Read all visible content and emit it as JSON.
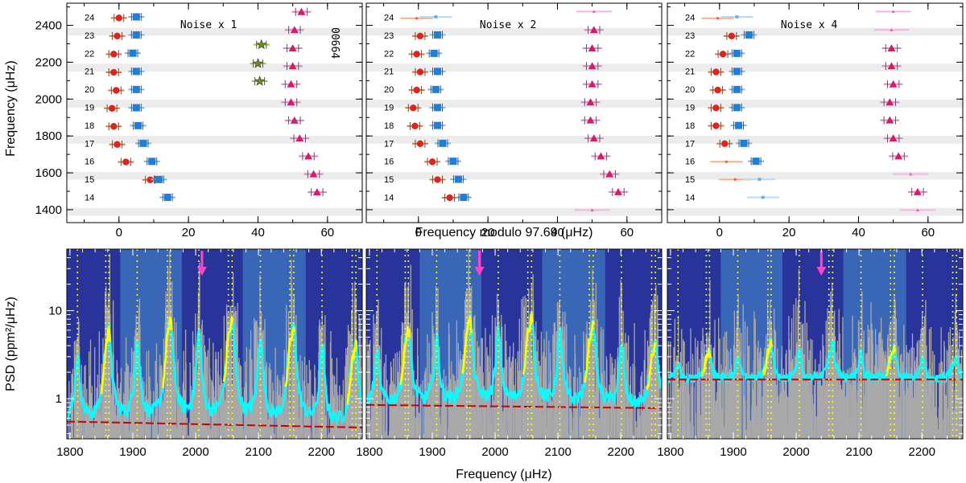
{
  "figure": {
    "top_xlabel": "Frequency modulo 97.69 (μHz)",
    "top_ylabel": "Frequency (μHz)",
    "bottom_xlabel": "Frequency (μHz)",
    "bottom_ylabel": "PSD (ppm²/μHz)",
    "star_id": "00664"
  },
  "chart_data": [
    {
      "type": "scatter",
      "panel": "echelle-noise-x1",
      "annotation": "Noise x 1",
      "xlim": [
        -15,
        70
      ],
      "ylim": [
        1330,
        2520
      ],
      "xticks": [
        0,
        20,
        40,
        60
      ],
      "yticks": [
        1400,
        1600,
        1800,
        2000,
        2200,
        2400
      ],
      "orders": [
        14,
        15,
        16,
        17,
        18,
        19,
        20,
        21,
        22,
        23,
        24
      ],
      "series": [
        {
          "name": "l=0",
          "marker": "circle",
          "color": "#e2231a",
          "points": [
            [
              9,
              1562
            ],
            [
              2,
              1659
            ],
            [
              -0.5,
              1754
            ],
            [
              -1.5,
              1852
            ],
            [
              -2,
              1950
            ],
            [
              -0.8,
              2047
            ],
            [
              -1.5,
              2145
            ],
            [
              -1.5,
              2244
            ],
            [
              -0.5,
              2342
            ],
            [
              0,
              2440
            ]
          ]
        },
        {
          "name": "l=1",
          "marker": "square",
          "color": "#1e7fd8",
          "points": [
            [
              14,
              1467
            ],
            [
              11.5,
              1564
            ],
            [
              9.5,
              1662
            ],
            [
              7,
              1760
            ],
            [
              5.5,
              1856
            ],
            [
              5,
              1953
            ],
            [
              5,
              2052
            ],
            [
              5,
              2150
            ],
            [
              4,
              2249
            ],
            [
              5,
              2348
            ],
            [
              5,
              2446
            ]
          ]
        },
        {
          "name": "l=2",
          "marker": "triangle",
          "color": "#d41c6f",
          "points": [
            [
              57,
              1495
            ],
            [
              56,
              1593
            ],
            [
              54.5,
              1690
            ],
            [
              52,
              1787
            ],
            [
              50.5,
              1884
            ],
            [
              49.5,
              1983
            ],
            [
              49.5,
              2081
            ],
            [
              50,
              2179
            ],
            [
              50,
              2276
            ],
            [
              50.5,
              2375
            ],
            [
              52.5,
              2473
            ]
          ]
        },
        {
          "name": "l=3",
          "marker": "star",
          "color": "#6b8e23",
          "points": [
            [
              40.5,
              2097
            ],
            [
              40,
              2193
            ],
            [
              41,
              2295
            ]
          ]
        }
      ]
    },
    {
      "type": "scatter",
      "panel": "echelle-noise-x2",
      "annotation": "Noise x 2",
      "xlim": [
        -15,
        70
      ],
      "ylim": [
        1330,
        2520
      ],
      "xticks": [
        0,
        20,
        40,
        60
      ],
      "yticks": [
        1400,
        1600,
        1800,
        2000,
        2200,
        2400
      ],
      "orders": [
        14,
        15,
        16,
        17,
        18,
        19,
        20,
        21,
        22,
        23,
        24
      ],
      "series": [
        {
          "name": "l=0",
          "marker": "circle",
          "color": "#e2231a",
          "points": [
            [
              9,
              1465
            ],
            [
              5.5,
              1563
            ],
            [
              4,
              1660
            ],
            [
              0.5,
              1758
            ],
            [
              -1,
              1854
            ],
            [
              -1.5,
              1952
            ],
            [
              -0.5,
              2049
            ],
            [
              0.5,
              2147
            ],
            [
              -0.5,
              2244
            ],
            [
              0.5,
              2342
            ],
            [
              -0.5,
              2438,
              "faint"
            ]
          ]
        },
        {
          "name": "l=1",
          "marker": "square",
          "color": "#1e7fd8",
          "points": [
            [
              13,
              1467
            ],
            [
              11.5,
              1565
            ],
            [
              10,
              1663
            ],
            [
              7,
              1760
            ],
            [
              5.5,
              1857
            ],
            [
              5.5,
              1954
            ],
            [
              5,
              2052
            ],
            [
              5.5,
              2150
            ],
            [
              4.5,
              2248
            ],
            [
              5.5,
              2348
            ],
            [
              5,
              2446,
              "faint"
            ]
          ]
        },
        {
          "name": "l=2",
          "marker": "triangle",
          "color": "#d41c6f",
          "points": [
            [
              50,
              1398,
              "faint"
            ],
            [
              57.5,
              1496
            ],
            [
              55,
              1593
            ],
            [
              52.5,
              1690
            ],
            [
              50.5,
              1787
            ],
            [
              49.5,
              1885
            ],
            [
              49.5,
              1983
            ],
            [
              50,
              2081
            ],
            [
              50,
              2179
            ],
            [
              50,
              2276
            ],
            [
              50.5,
              2375
            ],
            [
              50.5,
              2475,
              "faint"
            ]
          ]
        }
      ]
    },
    {
      "type": "scatter",
      "panel": "echelle-noise-x4",
      "annotation": "Noise x 4",
      "xlim": [
        -15,
        70
      ],
      "ylim": [
        1330,
        2520
      ],
      "xticks": [
        0,
        20,
        40,
        60
      ],
      "yticks": [
        1400,
        1600,
        1800,
        2000,
        2200,
        2400
      ],
      "orders": [
        14,
        15,
        16,
        17,
        18,
        19,
        20,
        21,
        22,
        23,
        24
      ],
      "series": [
        {
          "name": "l=0",
          "marker": "circle",
          "color": "#e2231a",
          "points": [
            [
              4.5,
              1564,
              "faint"
            ],
            [
              2,
              1660,
              "faint"
            ],
            [
              1.5,
              1758
            ],
            [
              -1,
              1855
            ],
            [
              -1,
              1952
            ],
            [
              -0.5,
              2049
            ],
            [
              -1,
              2147
            ],
            [
              1,
              2244
            ],
            [
              3.5,
              2342
            ],
            [
              -0.5,
              2438,
              "faint"
            ]
          ]
        },
        {
          "name": "l=1",
          "marker": "square",
          "color": "#1e7fd8",
          "points": [
            [
              12.5,
              1467,
              "faint"
            ],
            [
              11.5,
              1565,
              "faint"
            ],
            [
              10.5,
              1663
            ],
            [
              7,
              1760
            ],
            [
              5.5,
              1857
            ],
            [
              5,
              1954
            ],
            [
              5,
              2052
            ],
            [
              5,
              2150
            ],
            [
              5,
              2248
            ],
            [
              8.5,
              2348
            ],
            [
              5,
              2446,
              "faint"
            ]
          ]
        },
        {
          "name": "l=2",
          "marker": "triangle",
          "color": "#d41c6f",
          "points": [
            [
              57,
              1398,
              "faint"
            ],
            [
              57,
              1496
            ],
            [
              55,
              1593,
              "faint"
            ],
            [
              51.5,
              1690
            ],
            [
              50,
              1787
            ],
            [
              49,
              1885
            ],
            [
              49,
              1983
            ],
            [
              50,
              2081
            ],
            [
              49.5,
              2179
            ],
            [
              49.5,
              2276
            ],
            [
              49.5,
              2375,
              "faint"
            ],
            [
              50,
              2475,
              "faint"
            ]
          ]
        }
      ]
    },
    {
      "type": "line",
      "panel": "psd-noise-x1",
      "xlim": [
        1795,
        2265
      ],
      "ylim": [
        0.35,
        50
      ],
      "yscale": "log",
      "xticks": [
        1800,
        1900,
        2000,
        2100,
        2200
      ],
      "yticks": [
        1,
        10
      ],
      "nu_max": 2010,
      "mode_frequencies": [
        1812,
        1857,
        1862,
        1907,
        1955,
        1960,
        2005,
        2052,
        2058,
        2103,
        2150,
        2156,
        2201,
        2249,
        2255
      ],
      "background_level": [
        0.55,
        0.47
      ],
      "noise_level": 1,
      "shaded_bands": [
        [
          1880,
          1978
        ],
        [
          2075,
          2175
        ]
      ],
      "series_smoothed_color": "#00ffff",
      "series_fit_color": "#ffff00",
      "raw_psd_color": "#a9a9a9",
      "background_color": "#cc0000"
    },
    {
      "type": "line",
      "panel": "psd-noise-x2",
      "xlim": [
        1795,
        2265
      ],
      "ylim": [
        0.35,
        50
      ],
      "yscale": "log",
      "xticks": [
        1800,
        1900,
        2000,
        2100,
        2200
      ],
      "yticks": [
        1,
        10
      ],
      "nu_max": 1975,
      "mode_frequencies": [
        1812,
        1857,
        1862,
        1907,
        1955,
        1960,
        2005,
        2052,
        2058,
        2103,
        2150,
        2156,
        2201,
        2249,
        2255
      ],
      "background_level": [
        0.85,
        0.78
      ],
      "noise_level": 2,
      "shaded_bands": [
        [
          1880,
          1978
        ],
        [
          2075,
          2175
        ]
      ],
      "series_smoothed_color": "#00ffff",
      "series_fit_color": "#ffff00",
      "raw_psd_color": "#a9a9a9",
      "background_color": "#cc0000"
    },
    {
      "type": "line",
      "panel": "psd-noise-x4",
      "xlim": [
        1795,
        2265
      ],
      "ylim": [
        0.35,
        50
      ],
      "yscale": "log",
      "xticks": [
        1800,
        1900,
        2000,
        2100,
        2200
      ],
      "yticks": [
        1,
        10
      ],
      "nu_max": 2040,
      "mode_frequencies": [
        1812,
        1857,
        1862,
        1907,
        1955,
        1960,
        2005,
        2052,
        2058,
        2103,
        2150,
        2156,
        2201,
        2249,
        2255
      ],
      "background_level": [
        1.65,
        1.65
      ],
      "noise_level": 4,
      "shaded_bands": [
        [
          1880,
          1978
        ],
        [
          2075,
          2175
        ]
      ],
      "series_smoothed_color": "#00ffff",
      "series_fit_color": "#ffff00",
      "raw_psd_color": "#a9a9a9",
      "background_color": "#cc0000"
    }
  ]
}
